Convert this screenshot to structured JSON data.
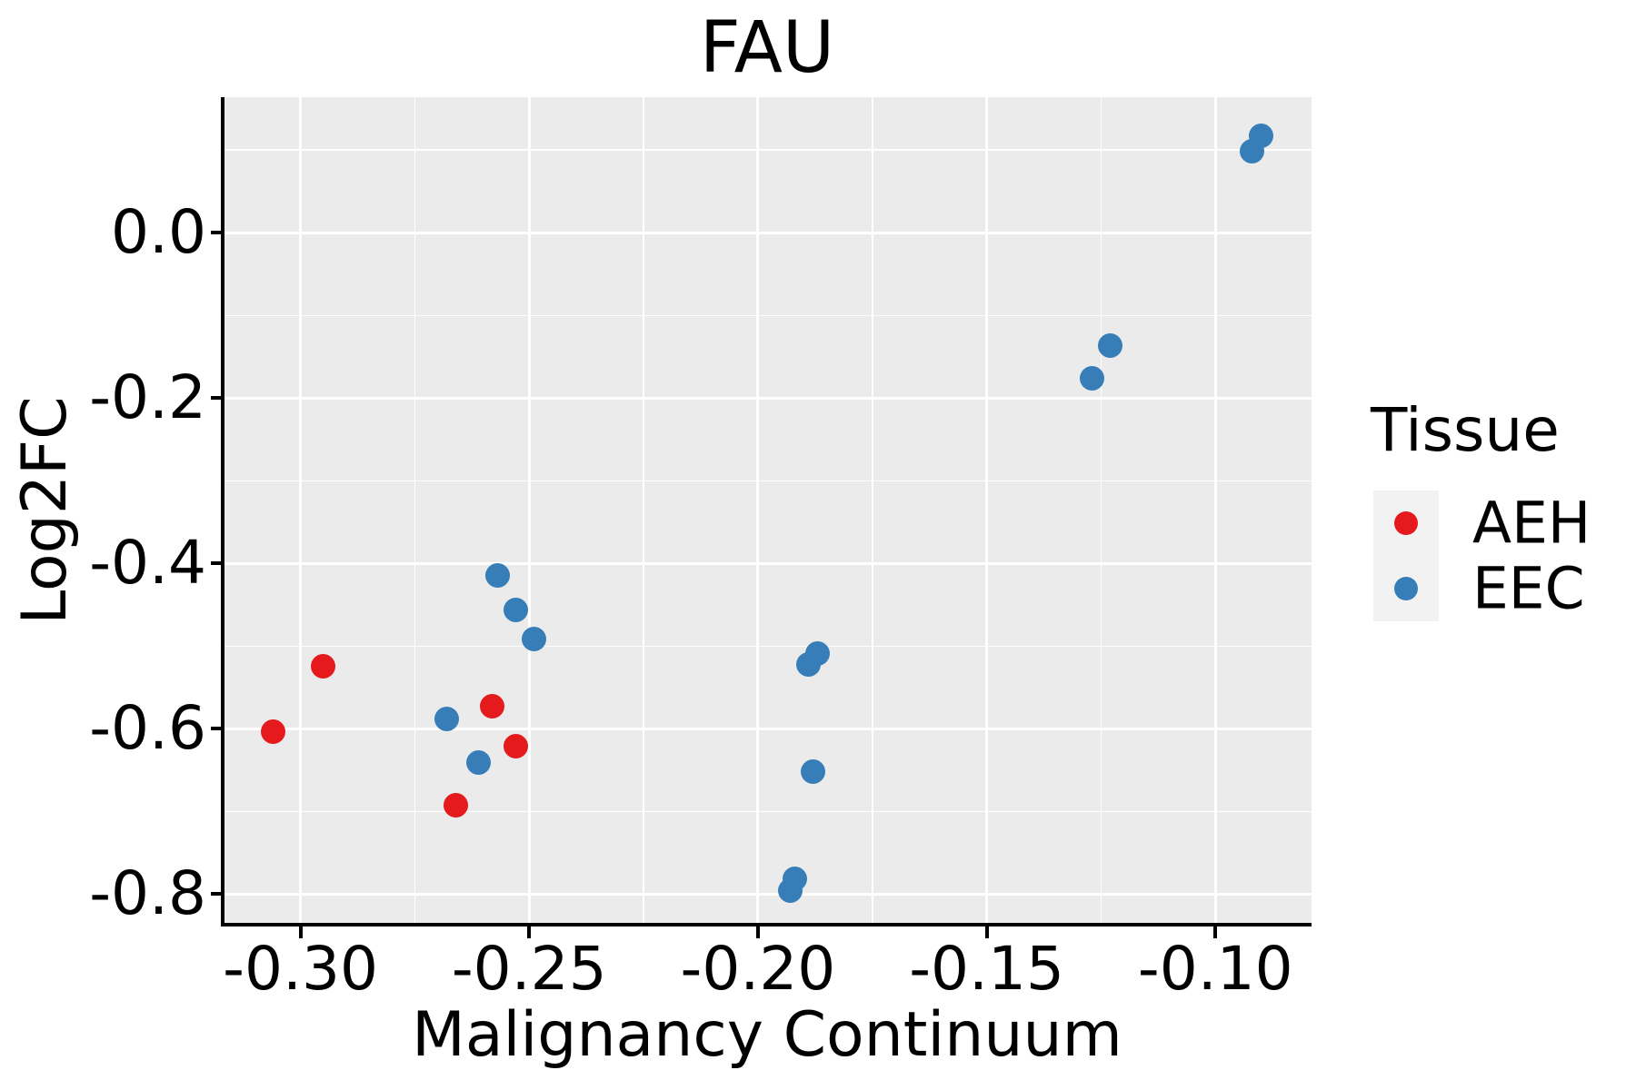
{
  "chart_data": {
    "type": "scatter",
    "title": "FAU",
    "xlabel": "Malignancy Continuum",
    "ylabel": "Log2FC",
    "xlim": [
      -0.317,
      -0.079
    ],
    "ylim": [
      -0.837,
      0.164
    ],
    "x_ticks": {
      "values": [
        -0.3,
        -0.25,
        -0.2,
        -0.15,
        -0.1
      ],
      "labels": [
        "-0.30",
        "-0.25",
        "-0.20",
        "-0.15",
        "-0.10"
      ]
    },
    "y_ticks": {
      "values": [
        0.0,
        -0.2,
        -0.4,
        -0.6,
        -0.8
      ],
      "labels": [
        "0.0",
        "-0.2",
        "-0.4",
        "-0.6",
        "-0.8"
      ]
    },
    "x_minor_gridlines": [
      -0.275,
      -0.225,
      -0.175,
      -0.125
    ],
    "y_minor_gridlines": [
      0.1,
      -0.1,
      -0.3,
      -0.5,
      -0.7
    ],
    "grid": "white major and minor gridlines on gray panel",
    "legend_position": "right",
    "series": [
      {
        "name": "AEH",
        "color": "#E41A1C",
        "points": [
          [
            -0.295,
            -0.524
          ],
          [
            -0.306,
            -0.603
          ],
          [
            -0.258,
            -0.573
          ],
          [
            -0.253,
            -0.621
          ],
          [
            -0.266,
            -0.693
          ]
        ]
      },
      {
        "name": "EEC",
        "color": "#377EB8",
        "points": [
          [
            -0.257,
            -0.414
          ],
          [
            -0.253,
            -0.456
          ],
          [
            -0.249,
            -0.491
          ],
          [
            -0.268,
            -0.588
          ],
          [
            -0.261,
            -0.641
          ],
          [
            -0.189,
            -0.522
          ],
          [
            -0.187,
            -0.509
          ],
          [
            -0.188,
            -0.652
          ],
          [
            -0.193,
            -0.796
          ],
          [
            -0.192,
            -0.781
          ],
          [
            -0.127,
            -0.176
          ],
          [
            -0.123,
            -0.136
          ],
          [
            -0.09,
            0.117
          ],
          [
            -0.092,
            0.099
          ]
        ]
      }
    ]
  },
  "legend": {
    "title": "Tissue",
    "items": [
      {
        "label": "AEH"
      },
      {
        "label": "EEC"
      }
    ]
  },
  "colors": {
    "panel_background": "#EBEBEB",
    "gridline": "#FFFFFF",
    "legend_key_background": "#F2F2F2",
    "axis_line": "#000000",
    "text": "#000000"
  }
}
